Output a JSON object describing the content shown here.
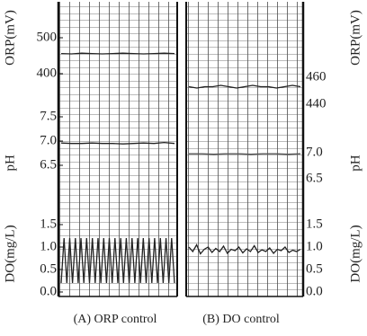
{
  "chart_data": [
    {
      "type": "line",
      "ylabel": "ORP(mV)",
      "ylim": [
        300,
        600
      ],
      "yticks": [
        400,
        500
      ],
      "color": "#222222",
      "values": [
        456,
        455,
        457,
        456,
        455,
        456,
        457,
        456,
        455,
        456,
        457,
        456
      ]
    },
    {
      "type": "line",
      "ylabel": "pH",
      "ylim": [
        5.5,
        7.6
      ],
      "yticks": [
        {
          "value": 6.5,
          "label": "6.5"
        },
        {
          "value": 7,
          "label": "7.0"
        },
        {
          "value": 7.5,
          "label": "7.5"
        }
      ],
      "color": "#222222",
      "values": [
        6.96,
        6.95,
        6.95,
        6.96,
        6.95,
        6.95,
        6.94,
        6.95,
        6.96,
        6.95,
        6.97,
        6.95
      ]
    },
    {
      "type": "line",
      "ylabel": "DO(mg/L)",
      "ylim": [
        0,
        1.7
      ],
      "yticks": [
        {
          "value": 0,
          "label": "0.0"
        },
        0.5,
        {
          "value": 1,
          "label": "1.0"
        },
        1.5
      ],
      "color": "#222222",
      "values": [
        0.2,
        1.2,
        0.2,
        1.2,
        0.2,
        1.2,
        0.2,
        1.2,
        0.2,
        1.2,
        0.2,
        1.2,
        0.2,
        1.2,
        0.2,
        1.2,
        0.2,
        1.2,
        0.2,
        1.2,
        0.2,
        1.2,
        0.2,
        1.2,
        0.2,
        1.2,
        0.2,
        1.2,
        0.2,
        1.2,
        0.2,
        1.2,
        0.2,
        1.2,
        0.2,
        1.2,
        0.2,
        1.2,
        0.2,
        1.2,
        0.2
      ]
    },
    {
      "type": "line",
      "ylabel": "ORP(mV)",
      "ylim": [
        436,
        516
      ],
      "yticks": [
        440,
        460
      ],
      "color": "#222222",
      "values": [
        453,
        452,
        453,
        453,
        454,
        453,
        452,
        453,
        454,
        453,
        453,
        452,
        453,
        454,
        453
      ]
    },
    {
      "type": "line",
      "ylabel": "pH",
      "ylim": [
        5.8,
        7.8
      ],
      "yticks": [
        {
          "value": 6.5,
          "label": "6.5"
        },
        {
          "value": 7,
          "label": "7.0"
        }
      ],
      "color": "#555555",
      "values": [
        6.98,
        6.98,
        6.97,
        6.98,
        6.98,
        6.97,
        6.98,
        6.98,
        6.97,
        6.98
      ]
    },
    {
      "type": "line",
      "ylabel": "DO(mg/L)",
      "ylim": [
        0,
        1.7
      ],
      "yticks": [
        {
          "value": 0,
          "label": "0.0"
        },
        0.5,
        {
          "value": 1,
          "label": "1.0"
        },
        1.5
      ],
      "color": "#222222",
      "values": [
        1.0,
        0.9,
        1.05,
        0.85,
        0.95,
        1.0,
        0.88,
        0.97,
        0.9,
        1.02,
        0.86,
        0.95,
        0.92,
        1.0,
        0.87,
        0.96,
        0.9,
        1.03,
        0.88,
        0.94,
        0.9,
        0.98,
        0.86,
        0.95,
        0.92,
        1.0,
        0.88,
        0.93,
        0.9,
        0.95
      ]
    }
  ],
  "captions": [
    "(A) ORP control",
    "(B) DO control"
  ]
}
